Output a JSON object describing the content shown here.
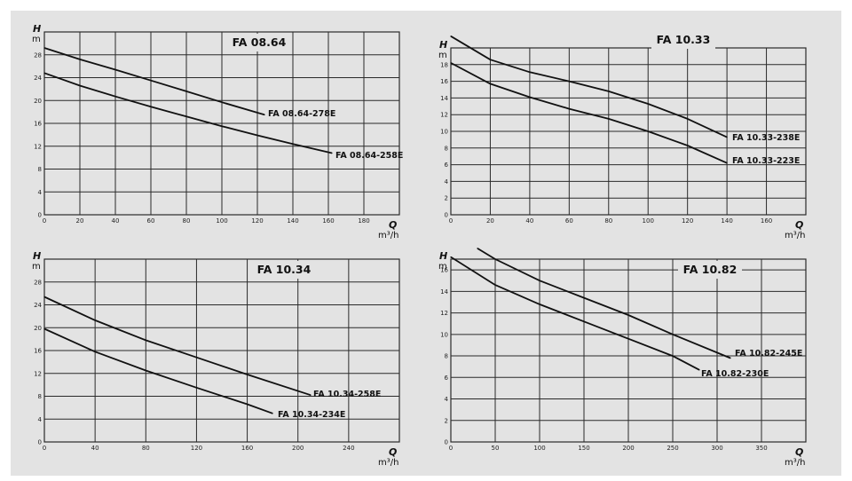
{
  "chart_data": [
    {
      "type": "line",
      "title": "FA 08.64",
      "ylabel": "H",
      "yunit": "m",
      "xlabel": "Q",
      "xunit": "m³/h",
      "xlim": [
        0,
        200
      ],
      "ylim": [
        0,
        32
      ],
      "xticks": [
        0,
        20,
        40,
        60,
        80,
        100,
        120,
        140,
        160,
        180
      ],
      "yticks": [
        0,
        4,
        8,
        12,
        16,
        20,
        24,
        28
      ],
      "grid": true,
      "series": [
        {
          "name": "FA 08.64-278E",
          "x": [
            0,
            20,
            40,
            60,
            80,
            100,
            124
          ],
          "y": [
            29.2,
            27.2,
            25.4,
            23.5,
            21.6,
            19.7,
            17.5
          ]
        },
        {
          "name": "FA 08.64-258E",
          "x": [
            0,
            20,
            40,
            60,
            80,
            100,
            120,
            140,
            162
          ],
          "y": [
            24.8,
            22.6,
            20.7,
            18.9,
            17.2,
            15.5,
            13.9,
            12.4,
            10.8
          ]
        }
      ]
    },
    {
      "type": "line",
      "title": "FA 10.33",
      "ylabel": "H",
      "yunit": "m",
      "xlabel": "Q",
      "xunit": "m³/h",
      "xlim": [
        0,
        180
      ],
      "ylim": [
        0,
        20
      ],
      "xticks": [
        0,
        20,
        40,
        60,
        80,
        100,
        120,
        140,
        160
      ],
      "yticks": [
        0,
        2,
        4,
        6,
        8,
        10,
        12,
        14,
        16,
        18
      ],
      "grid": true,
      "series": [
        {
          "name": "FA 10.33-238E",
          "x": [
            0,
            20,
            40,
            60,
            80,
            100,
            120,
            140
          ],
          "y": [
            21.4,
            18.6,
            17.1,
            16.0,
            14.8,
            13.3,
            11.5,
            9.3
          ]
        },
        {
          "name": "FA 10.33-223E",
          "x": [
            0,
            20,
            40,
            60,
            80,
            100,
            120,
            140
          ],
          "y": [
            18.2,
            15.7,
            14.1,
            12.7,
            11.5,
            10.0,
            8.3,
            6.2
          ]
        }
      ]
    },
    {
      "type": "line",
      "title": "FA 10.34",
      "ylabel": "H",
      "yunit": "m",
      "xlabel": "Q",
      "xunit": "m³/h",
      "xlim": [
        0,
        280
      ],
      "ylim": [
        0,
        32
      ],
      "xticks": [
        0,
        40,
        80,
        120,
        160,
        200,
        240
      ],
      "yticks": [
        0,
        4,
        8,
        12,
        16,
        20,
        24,
        28
      ],
      "grid": true,
      "series": [
        {
          "name": "FA 10.34-258E",
          "x": [
            0,
            40,
            80,
            120,
            160,
            210
          ],
          "y": [
            25.4,
            21.3,
            17.8,
            14.8,
            11.8,
            8.2
          ]
        },
        {
          "name": "FA 10.34-234E",
          "x": [
            0,
            40,
            80,
            120,
            160,
            180
          ],
          "y": [
            19.8,
            15.8,
            12.5,
            9.5,
            6.6,
            5.0
          ]
        }
      ]
    },
    {
      "type": "line",
      "title": "FA 10.82",
      "ylabel": "H",
      "yunit": "m",
      "xlabel": "Q",
      "xunit": "m³/h",
      "xlim": [
        0,
        400
      ],
      "ylim": [
        0,
        17
      ],
      "xticks": [
        0,
        50,
        100,
        150,
        200,
        250,
        300,
        350
      ],
      "yticks": [
        0,
        2,
        4,
        6,
        8,
        10,
        12,
        14,
        16
      ],
      "grid": true,
      "series": [
        {
          "name": "FA 10.82-245E",
          "x": [
            30,
            50,
            100,
            150,
            200,
            250,
            315
          ],
          "y": [
            18.0,
            17.0,
            15.0,
            13.4,
            11.8,
            10.0,
            7.8
          ]
        },
        {
          "name": "FA 10.82-230E",
          "x": [
            0,
            50,
            100,
            150,
            200,
            250,
            280
          ],
          "y": [
            17.2,
            14.6,
            12.8,
            11.2,
            9.6,
            8.0,
            6.7
          ]
        }
      ]
    }
  ]
}
